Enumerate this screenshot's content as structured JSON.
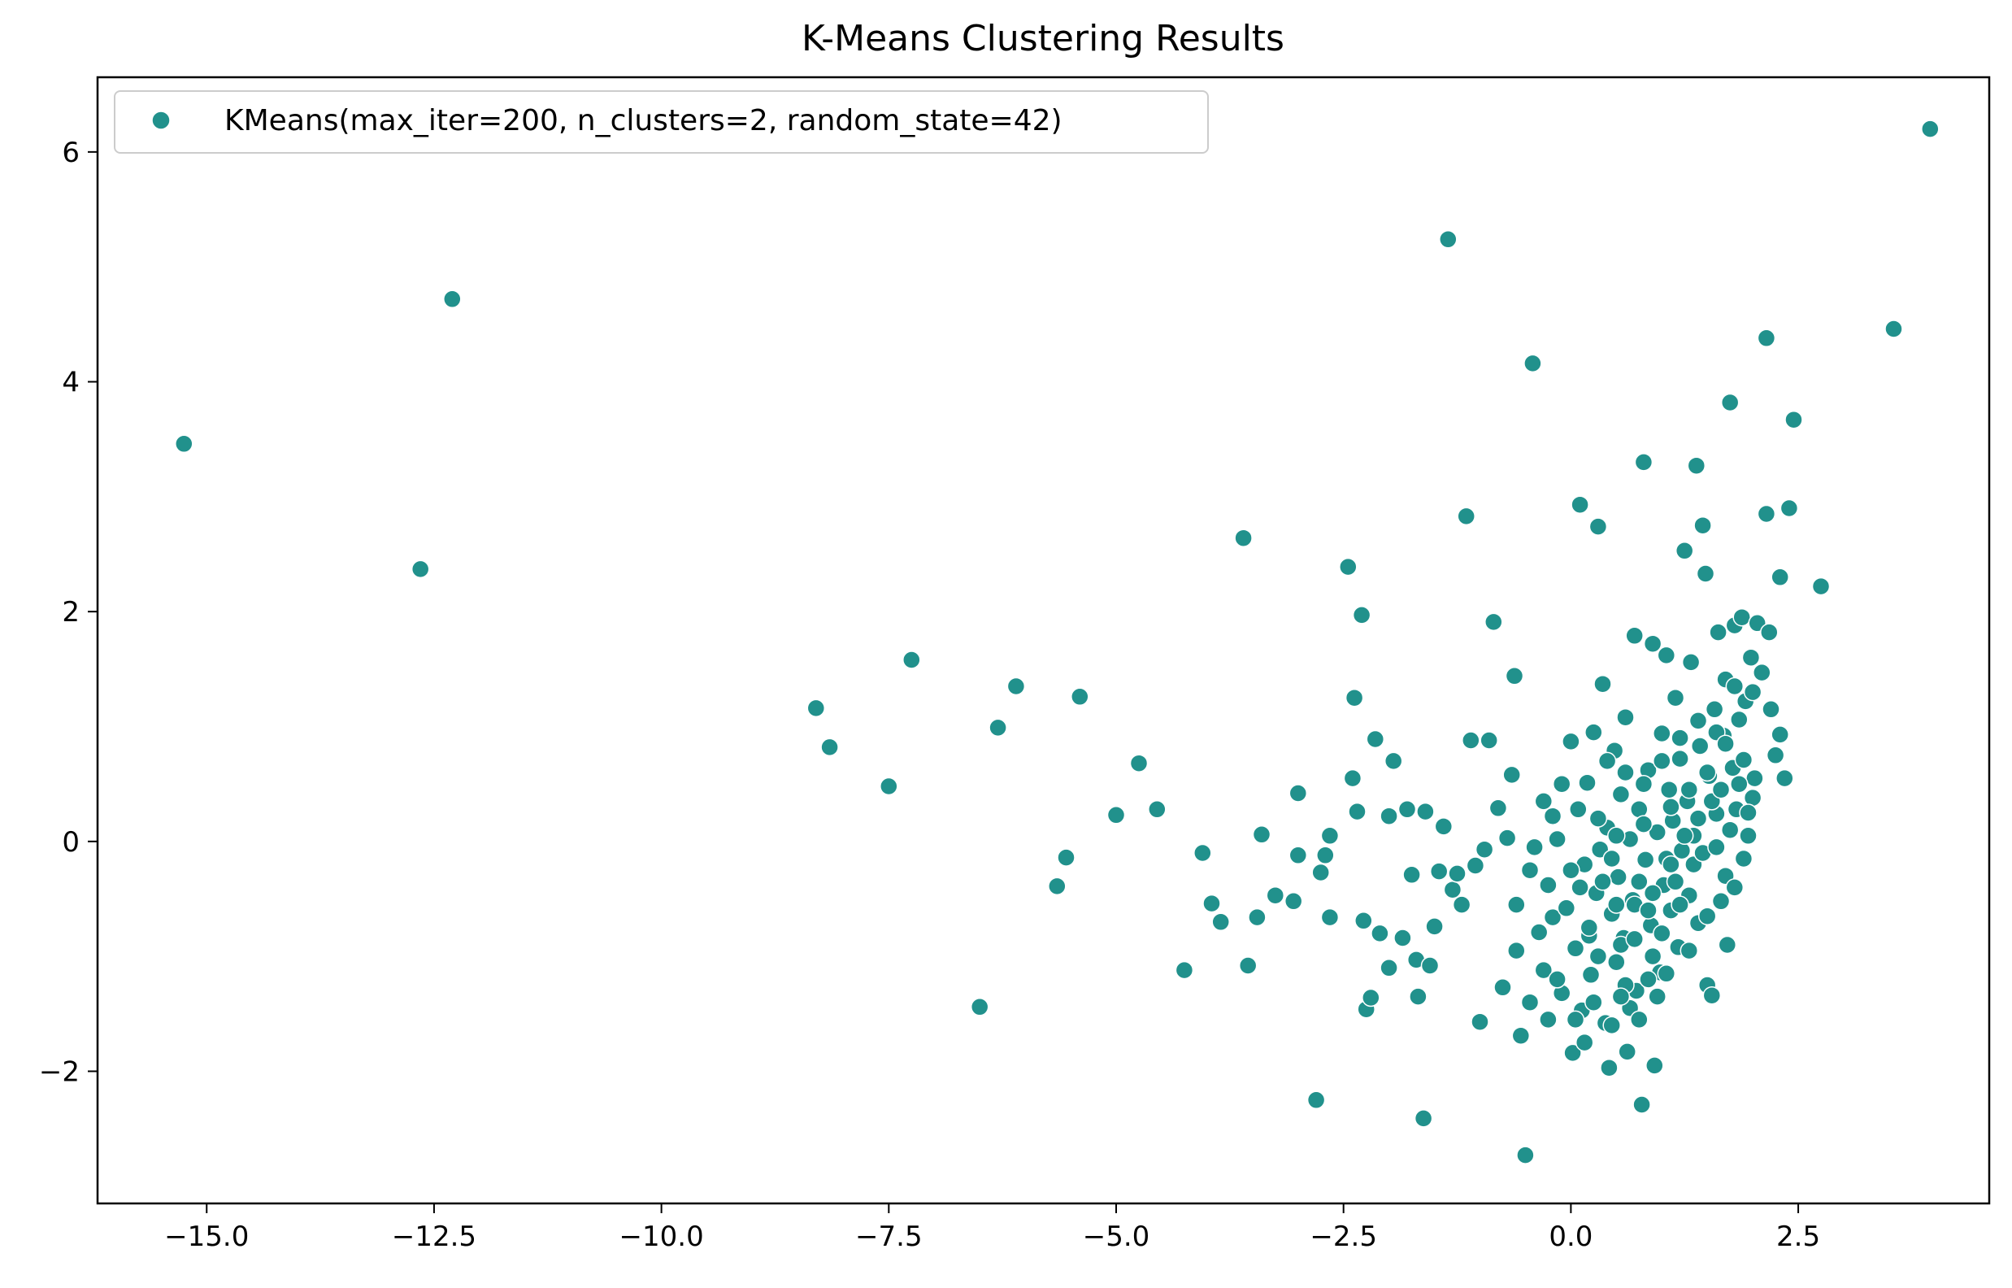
{
  "chart_data": {
    "type": "scatter",
    "title": "K-Means Clustering Results",
    "xlabel": "",
    "ylabel": "",
    "xlim": [
      -16.2,
      4.6
    ],
    "ylim": [
      -3.15,
      6.65
    ],
    "x_ticks": [
      -15.0,
      -12.5,
      -10.0,
      -7.5,
      -5.0,
      -2.5,
      0.0,
      2.5
    ],
    "x_tick_labels": [
      "−15.0",
      "−12.5",
      "−10.0",
      "−7.5",
      "−5.0",
      "−2.5",
      "0.0",
      "2.5"
    ],
    "y_ticks": [
      -2,
      0,
      2,
      4,
      6
    ],
    "y_tick_labels": [
      "−2",
      "0",
      "2",
      "4",
      "6"
    ],
    "grid": false,
    "legend": {
      "placement": "top-left",
      "entries": [
        "KMeans(max_iter=200, n_clusters=2, random_state=42)"
      ]
    },
    "colors": {
      "marker": "#21918c",
      "marker_edge": "#ffffff",
      "axes": "#000000"
    },
    "series": [
      {
        "name": "KMeans(max_iter=200, n_clusters=2, random_state=42)",
        "points": [
          [
            -15.25,
            3.46
          ],
          [
            -12.65,
            2.37
          ],
          [
            -12.3,
            4.72
          ],
          [
            -8.3,
            1.16
          ],
          [
            -8.15,
            0.82
          ],
          [
            -7.5,
            0.48
          ],
          [
            -7.25,
            1.58
          ],
          [
            -6.5,
            -1.44
          ],
          [
            -6.3,
            0.99
          ],
          [
            -6.1,
            1.35
          ],
          [
            -5.65,
            -0.39
          ],
          [
            -5.55,
            -0.14
          ],
          [
            -5.4,
            1.26
          ],
          [
            -5.0,
            0.23
          ],
          [
            -4.75,
            0.68
          ],
          [
            -4.55,
            0.28
          ],
          [
            -4.25,
            -1.12
          ],
          [
            -4.05,
            -0.1
          ],
          [
            -3.95,
            -0.54
          ],
          [
            -3.85,
            -0.7
          ],
          [
            -3.6,
            2.64
          ],
          [
            -3.55,
            -1.08
          ],
          [
            -3.45,
            -0.66
          ],
          [
            -3.4,
            0.06
          ],
          [
            -3.25,
            -0.47
          ],
          [
            -3.05,
            -0.52
          ],
          [
            -3.0,
            0.42
          ],
          [
            -3.0,
            -0.12
          ],
          [
            -2.8,
            -2.25
          ],
          [
            -2.75,
            -0.27
          ],
          [
            -2.7,
            -0.12
          ],
          [
            -2.65,
            0.05
          ],
          [
            -2.65,
            -0.66
          ],
          [
            -2.45,
            2.39
          ],
          [
            -2.4,
            0.55
          ],
          [
            -2.38,
            1.25
          ],
          [
            -2.35,
            0.26
          ],
          [
            -2.3,
            1.97
          ],
          [
            -2.28,
            -0.69
          ],
          [
            -2.25,
            -1.46
          ],
          [
            -2.2,
            -1.36
          ],
          [
            -2.15,
            0.89
          ],
          [
            -2.1,
            -0.8
          ],
          [
            -2.0,
            -1.1
          ],
          [
            -2.0,
            0.22
          ],
          [
            -1.95,
            0.7
          ],
          [
            -1.85,
            -0.84
          ],
          [
            -1.8,
            0.28
          ],
          [
            -1.75,
            -0.29
          ],
          [
            -1.7,
            -1.03
          ],
          [
            -1.68,
            -1.35
          ],
          [
            -1.62,
            -2.41
          ],
          [
            -1.6,
            0.26
          ],
          [
            -1.55,
            -1.08
          ],
          [
            -1.5,
            -0.74
          ],
          [
            -1.45,
            -0.26
          ],
          [
            -1.4,
            0.13
          ],
          [
            -1.35,
            5.24
          ],
          [
            -1.3,
            -0.42
          ],
          [
            -1.25,
            -0.28
          ],
          [
            -1.2,
            -0.55
          ],
          [
            -1.15,
            2.83
          ],
          [
            -1.1,
            0.88
          ],
          [
            -1.05,
            -0.21
          ],
          [
            -1.0,
            -1.57
          ],
          [
            -0.95,
            -0.07
          ],
          [
            -0.9,
            0.88
          ],
          [
            -0.85,
            1.91
          ],
          [
            -0.8,
            0.29
          ],
          [
            -0.75,
            -1.27
          ],
          [
            -0.7,
            0.03
          ],
          [
            -0.65,
            0.58
          ],
          [
            -0.62,
            1.44
          ],
          [
            -0.6,
            -0.55
          ],
          [
            -0.55,
            -1.69
          ],
          [
            -0.5,
            -2.73
          ],
          [
            -0.45,
            -0.25
          ],
          [
            -0.42,
            4.16
          ],
          [
            -0.35,
            -0.79
          ],
          [
            -0.3,
            -1.12
          ],
          [
            -0.25,
            -0.38
          ],
          [
            -0.2,
            -0.66
          ],
          [
            -0.15,
            0.02
          ],
          [
            -0.1,
            -1.32
          ],
          [
            -0.05,
            -0.58
          ],
          [
            0.0,
            0.87
          ],
          [
            0.02,
            -1.84
          ],
          [
            0.05,
            -0.93
          ],
          [
            0.08,
            0.28
          ],
          [
            0.1,
            2.93
          ],
          [
            0.12,
            -1.47
          ],
          [
            0.15,
            -0.2
          ],
          [
            0.18,
            0.51
          ],
          [
            0.2,
            -0.82
          ],
          [
            0.22,
            -1.16
          ],
          [
            0.25,
            0.95
          ],
          [
            0.28,
            -0.45
          ],
          [
            0.3,
            2.74
          ],
          [
            0.32,
            -0.07
          ],
          [
            0.35,
            1.37
          ],
          [
            0.38,
            -1.58
          ],
          [
            0.4,
            0.12
          ],
          [
            0.42,
            -1.97
          ],
          [
            0.45,
            -0.63
          ],
          [
            0.48,
            0.79
          ],
          [
            0.5,
            -1.05
          ],
          [
            0.52,
            -0.31
          ],
          [
            0.55,
            0.41
          ],
          [
            0.58,
            -0.84
          ],
          [
            0.6,
            1.08
          ],
          [
            0.62,
            -1.83
          ],
          [
            0.65,
            0.02
          ],
          [
            0.68,
            -0.51
          ],
          [
            0.7,
            1.79
          ],
          [
            0.72,
            -1.3
          ],
          [
            0.75,
            0.28
          ],
          [
            0.78,
            -2.29
          ],
          [
            0.8,
            3.3
          ],
          [
            0.82,
            -0.16
          ],
          [
            0.85,
            0.62
          ],
          [
            0.88,
            -0.73
          ],
          [
            0.9,
            1.72
          ],
          [
            0.92,
            -1.95
          ],
          [
            0.95,
            0.08
          ],
          [
            0.98,
            -1.14
          ],
          [
            1.0,
            0.94
          ],
          [
            1.02,
            -0.38
          ],
          [
            1.05,
            1.62
          ],
          [
            1.08,
            0.45
          ],
          [
            1.1,
            -0.6
          ],
          [
            1.12,
            0.18
          ],
          [
            1.15,
            1.25
          ],
          [
            1.18,
            -0.92
          ],
          [
            1.2,
            0.72
          ],
          [
            1.22,
            -0.08
          ],
          [
            1.25,
            2.53
          ],
          [
            1.28,
            0.35
          ],
          [
            1.3,
            -0.47
          ],
          [
            1.32,
            1.56
          ],
          [
            1.35,
            0.05
          ],
          [
            1.38,
            3.27
          ],
          [
            1.4,
            -0.71
          ],
          [
            1.42,
            0.83
          ],
          [
            1.45,
            2.75
          ],
          [
            1.48,
            2.33
          ],
          [
            1.5,
            -1.25
          ],
          [
            1.52,
            0.57
          ],
          [
            1.55,
            -1.34
          ],
          [
            1.58,
            1.15
          ],
          [
            1.6,
            0.24
          ],
          [
            1.62,
            1.82
          ],
          [
            1.65,
            -0.52
          ],
          [
            1.68,
            0.92
          ],
          [
            1.7,
            1.41
          ],
          [
            1.72,
            -0.9
          ],
          [
            1.75,
            3.82
          ],
          [
            1.78,
            0.64
          ],
          [
            1.8,
            1.88
          ],
          [
            1.82,
            0.28
          ],
          [
            1.85,
            1.06
          ],
          [
            1.88,
            1.95
          ],
          [
            1.9,
            0.71
          ],
          [
            1.92,
            1.22
          ],
          [
            1.95,
            0.05
          ],
          [
            1.98,
            1.6
          ],
          [
            2.0,
            0.38
          ],
          [
            2.02,
            0.55
          ],
          [
            2.05,
            1.9
          ],
          [
            2.1,
            1.47
          ],
          [
            2.15,
            2.85
          ],
          [
            2.18,
            1.82
          ],
          [
            2.15,
            4.38
          ],
          [
            2.3,
            0.93
          ],
          [
            2.3,
            2.3
          ],
          [
            2.4,
            2.9
          ],
          [
            2.45,
            3.67
          ],
          [
            2.75,
            2.22
          ],
          [
            3.55,
            4.46
          ],
          [
            3.95,
            6.2
          ],
          [
            -0.4,
            -0.05
          ],
          [
            -0.3,
            0.35
          ],
          [
            -0.2,
            0.22
          ],
          [
            -0.1,
            0.5
          ],
          [
            0.0,
            -0.25
          ],
          [
            0.1,
            -0.4
          ],
          [
            0.2,
            -0.75
          ],
          [
            0.3,
            -1.0
          ],
          [
            0.35,
            -0.35
          ],
          [
            0.45,
            -0.15
          ],
          [
            0.5,
            0.05
          ],
          [
            0.55,
            -0.9
          ],
          [
            0.6,
            -1.25
          ],
          [
            0.65,
            -1.45
          ],
          [
            0.7,
            -0.55
          ],
          [
            0.75,
            -0.35
          ],
          [
            0.8,
            0.15
          ],
          [
            0.85,
            -0.6
          ],
          [
            0.9,
            -1.0
          ],
          [
            0.95,
            -1.35
          ],
          [
            1.0,
            -0.8
          ],
          [
            1.05,
            -0.15
          ],
          [
            1.1,
            0.3
          ],
          [
            1.15,
            -0.35
          ],
          [
            1.2,
            -0.55
          ],
          [
            1.25,
            0.05
          ],
          [
            1.3,
            0.45
          ],
          [
            1.35,
            -0.2
          ],
          [
            1.4,
            0.2
          ],
          [
            1.45,
            -0.1
          ],
          [
            1.5,
            0.6
          ],
          [
            1.55,
            0.35
          ],
          [
            1.6,
            -0.05
          ],
          [
            1.65,
            0.45
          ],
          [
            1.7,
            -0.3
          ],
          [
            1.75,
            0.1
          ],
          [
            1.8,
            -0.4
          ],
          [
            1.85,
            0.5
          ],
          [
            1.9,
            -0.15
          ],
          [
            1.95,
            0.25
          ],
          [
            0.4,
            0.7
          ],
          [
            0.6,
            0.6
          ],
          [
            0.8,
            0.5
          ],
          [
            1.0,
            0.7
          ],
          [
            1.2,
            0.9
          ],
          [
            1.4,
            1.05
          ],
          [
            1.6,
            0.95
          ],
          [
            1.8,
            1.35
          ],
          [
            2.0,
            1.3
          ],
          [
            2.2,
            1.15
          ],
          [
            2.25,
            0.75
          ],
          [
            2.35,
            0.55
          ],
          [
            0.3,
            0.2
          ],
          [
            0.5,
            -0.55
          ],
          [
            0.7,
            -0.85
          ],
          [
            0.9,
            -0.45
          ],
          [
            1.1,
            -0.2
          ],
          [
            1.3,
            -0.95
          ],
          [
            1.5,
            -0.65
          ],
          [
            1.7,
            0.85
          ],
          [
            -0.6,
            -0.95
          ],
          [
            -0.45,
            -1.4
          ],
          [
            -0.25,
            -1.55
          ],
          [
            -0.15,
            -1.2
          ],
          [
            0.05,
            -1.55
          ],
          [
            0.15,
            -1.75
          ],
          [
            0.25,
            -1.4
          ],
          [
            0.45,
            -1.6
          ],
          [
            0.55,
            -1.35
          ],
          [
            0.75,
            -1.55
          ],
          [
            0.85,
            -1.2
          ],
          [
            1.05,
            -1.15
          ]
        ]
      }
    ]
  }
}
